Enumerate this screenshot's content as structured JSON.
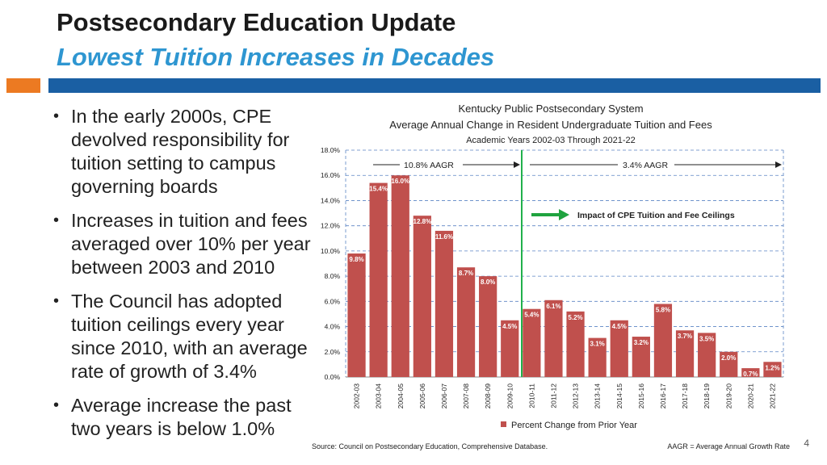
{
  "slide": {
    "title": "Postsecondary Education Update",
    "subtitle": "Lowest Tuition Increases in Decades",
    "page_number": "4",
    "bullets": [
      "In the early 2000s, CPE devolved responsibility for tuition setting to campus governing boards",
      "Increases in tuition and fees averaged over 10% per year between 2003 and 2010",
      "The Council has adopted tuition ceilings every year since 2010, with an average rate of growth of 3.4%",
      "Average increase the past two years is below 1.0%"
    ],
    "colors": {
      "accent_orange": "#ec7a22",
      "accent_blue": "#1a5fa3",
      "subtitle_blue": "#2e96d1",
      "bar": "#c0504d",
      "divider": "#22b14c",
      "arrow": "#1fa33f"
    }
  },
  "chart_data": {
    "type": "bar",
    "title_lines": [
      "Kentucky Public Postsecondary System",
      "Average Annual Change in Resident Undergraduate Tuition and Fees",
      "Academic Years 2002-03 Through 2021-22"
    ],
    "categories": [
      "2002-03",
      "2003-04",
      "2004-05",
      "2005-06",
      "2006-07",
      "2007-08",
      "2008-09",
      "2009-10",
      "2010-11",
      "2011-12",
      "2012-13",
      "2013-14",
      "2014-15",
      "2015-16",
      "2016-17",
      "2017-18",
      "2018-19",
      "2019-20",
      "2020-21",
      "2021-22"
    ],
    "values": [
      9.8,
      15.4,
      16.0,
      12.8,
      11.6,
      8.7,
      8.0,
      4.5,
      5.4,
      6.1,
      5.2,
      3.1,
      4.5,
      3.2,
      5.8,
      3.7,
      3.5,
      2.0,
      0.7,
      1.2
    ],
    "data_labels": [
      "9.8%",
      "15.4%",
      "16.0%",
      "12.8%",
      "11.6%",
      "8.7%",
      "8.0%",
      "4.5%",
      "5.4%",
      "6.1%",
      "5.2%",
      "3.1%",
      "4.5%",
      "3.2%",
      "5.8%",
      "3.7%",
      "3.5%",
      "2.0%",
      "0.7%",
      "1.2%"
    ],
    "yticks": [
      "0.0%",
      "2.0%",
      "4.0%",
      "6.0%",
      "8.0%",
      "10.0%",
      "12.0%",
      "14.0%",
      "16.0%",
      "18.0%"
    ],
    "ylim": [
      0,
      18
    ],
    "grid": true,
    "legend": "Percent Change from Prior Year",
    "legend_position": "bottom",
    "annotations": {
      "aagr_left": "10.8% AAGR",
      "aagr_right": "3.4% AAGR",
      "impact": "Impact of CPE Tuition and Fee Ceilings"
    },
    "source": "Source:  Council on Postsecondary Education, Comprehensive Database.",
    "footnote": "AAGR = Average Annual Growth Rate"
  }
}
